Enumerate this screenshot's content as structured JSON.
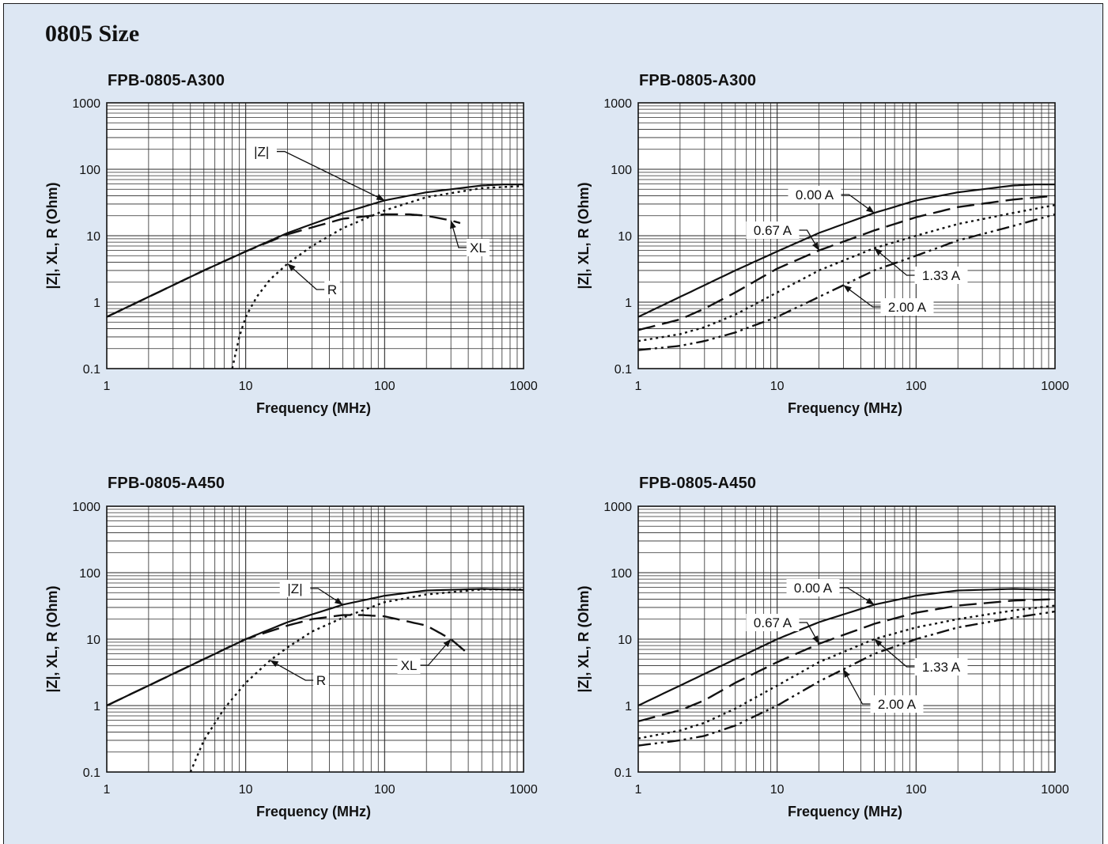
{
  "page_title": "0805 Size",
  "chart_data": [
    {
      "type": "line",
      "title": "FPB-0805-A300",
      "xlabel": "Frequency (MHz)",
      "ylabel": "|Z|, XL, R (Ohm)",
      "x_scale": "log",
      "y_scale": "log",
      "xlim": [
        1,
        1000
      ],
      "ylim": [
        0.1,
        1000
      ],
      "x_ticks": [
        "1",
        "10",
        "100",
        "1000"
      ],
      "y_ticks": [
        "0.1",
        "1",
        "10",
        "100",
        "1000"
      ],
      "grid": true,
      "series": [
        {
          "name": "|Z|",
          "style": "solid",
          "x": [
            1,
            2,
            5,
            10,
            20,
            50,
            100,
            200,
            500,
            700,
            1000
          ],
          "y": [
            0.6,
            1.2,
            3.0,
            5.8,
            11,
            22,
            34,
            45,
            57,
            59,
            59
          ]
        },
        {
          "name": "XL",
          "style": "dashed",
          "x": [
            1,
            2,
            5,
            10,
            20,
            50,
            100,
            150,
            200,
            300,
            350
          ],
          "y": [
            0.6,
            1.2,
            3.0,
            5.8,
            10.5,
            18,
            21,
            21,
            20,
            17,
            15.5
          ]
        },
        {
          "name": "R",
          "style": "dotted",
          "x": [
            8,
            9,
            10,
            12,
            15,
            20,
            30,
            50,
            100,
            200,
            500,
            1000
          ],
          "y": [
            0.1,
            0.3,
            0.6,
            1.2,
            2.2,
            3.8,
            7,
            13,
            24,
            38,
            52,
            56
          ]
        }
      ],
      "annotations": [
        "|Z|",
        "XL",
        "R"
      ]
    },
    {
      "type": "line",
      "title": "FPB-0805-A300",
      "xlabel": "Frequency (MHz)",
      "ylabel": "|Z|, XL, R (Ohm)",
      "x_scale": "log",
      "y_scale": "log",
      "xlim": [
        1,
        1000
      ],
      "ylim": [
        0.1,
        1000
      ],
      "x_ticks": [
        "1",
        "10",
        "100",
        "1000"
      ],
      "y_ticks": [
        "0.1",
        "1",
        "10",
        "100",
        "1000"
      ],
      "grid": true,
      "series": [
        {
          "name": "0.00 A",
          "style": "solid",
          "x": [
            1,
            2,
            5,
            10,
            20,
            50,
            100,
            200,
            500,
            700,
            1000
          ],
          "y": [
            0.6,
            1.2,
            3.0,
            5.8,
            11,
            22,
            34,
            45,
            57,
            59,
            59
          ]
        },
        {
          "name": "0.67 A",
          "style": "dashed",
          "x": [
            1,
            2,
            3,
            5,
            10,
            20,
            50,
            100,
            200,
            500,
            1000
          ],
          "y": [
            0.38,
            0.55,
            0.8,
            1.4,
            3.2,
            6,
            12,
            19,
            27,
            35,
            40
          ]
        },
        {
          "name": "1.33 A",
          "style": "dotted",
          "x": [
            1,
            2,
            3,
            5,
            10,
            20,
            50,
            100,
            200,
            500,
            1000
          ],
          "y": [
            0.26,
            0.33,
            0.42,
            0.65,
            1.4,
            3,
            6.5,
            10,
            15,
            22,
            29
          ]
        },
        {
          "name": "2.00 A",
          "style": "dashdot",
          "x": [
            1,
            2,
            3,
            5,
            10,
            20,
            50,
            100,
            200,
            500,
            1000
          ],
          "y": [
            0.19,
            0.22,
            0.26,
            0.35,
            0.6,
            1.2,
            3,
            5,
            8.5,
            14,
            21
          ]
        }
      ],
      "annotations": [
        "0.00 A",
        "0.67 A",
        "1.33 A",
        "2.00 A"
      ]
    },
    {
      "type": "line",
      "title": "FPB-0805-A450",
      "xlabel": "Frequency (MHz)",
      "ylabel": "|Z|, XL, R (Ohm)",
      "x_scale": "log",
      "y_scale": "log",
      "xlim": [
        1,
        1000
      ],
      "ylim": [
        0.1,
        1000
      ],
      "x_ticks": [
        "1",
        "10",
        "100",
        "1000"
      ],
      "y_ticks": [
        "0.1",
        "1",
        "10",
        "100",
        "1000"
      ],
      "grid": true,
      "series": [
        {
          "name": "|Z|",
          "style": "solid",
          "x": [
            1,
            2,
            5,
            10,
            20,
            50,
            100,
            200,
            500,
            1000
          ],
          "y": [
            1.0,
            2.0,
            5.0,
            10,
            18,
            33,
            45,
            54,
            57,
            55
          ]
        },
        {
          "name": "XL",
          "style": "dashed",
          "x": [
            1,
            2,
            5,
            10,
            20,
            30,
            50,
            70,
            100,
            200,
            300,
            400
          ],
          "y": [
            1.0,
            2.0,
            5.0,
            10,
            16,
            20,
            23,
            23,
            22,
            16,
            10,
            6
          ]
        },
        {
          "name": "R",
          "style": "dotted",
          "x": [
            4,
            5,
            7,
            10,
            15,
            20,
            30,
            50,
            100,
            200,
            500,
            1000
          ],
          "y": [
            0.1,
            0.3,
            0.9,
            2.2,
            4.8,
            7.5,
            13,
            21,
            36,
            47,
            56,
            56
          ]
        }
      ],
      "annotations": [
        "|Z|",
        "XL",
        "R"
      ]
    },
    {
      "type": "line",
      "title": "FPB-0805-A450",
      "xlabel": "Frequency (MHz)",
      "ylabel": "|Z|, XL, R (Ohm)",
      "x_scale": "log",
      "y_scale": "log",
      "xlim": [
        1,
        1000
      ],
      "ylim": [
        0.1,
        1000
      ],
      "x_ticks": [
        "1",
        "10",
        "100",
        "1000"
      ],
      "y_ticks": [
        "0.1",
        "1",
        "10",
        "100",
        "1000"
      ],
      "grid": true,
      "series": [
        {
          "name": "0.00 A",
          "style": "solid",
          "x": [
            1,
            2,
            5,
            10,
            20,
            50,
            100,
            200,
            500,
            1000
          ],
          "y": [
            1.0,
            2.0,
            5.0,
            10,
            18,
            33,
            45,
            54,
            57,
            55
          ]
        },
        {
          "name": "0.67 A",
          "style": "dashed",
          "x": [
            1,
            2,
            3,
            5,
            10,
            20,
            50,
            100,
            200,
            500,
            1000
          ],
          "y": [
            0.58,
            0.85,
            1.2,
            2.2,
            4.5,
            8.5,
            17,
            25,
            32,
            38,
            40
          ]
        },
        {
          "name": "1.33 A",
          "style": "dotted",
          "x": [
            1,
            2,
            3,
            5,
            10,
            20,
            50,
            100,
            200,
            500,
            1000
          ],
          "y": [
            0.32,
            0.42,
            0.55,
            0.9,
            2,
            4.5,
            10,
            15,
            20,
            27,
            32
          ]
        },
        {
          "name": "2.00 A",
          "style": "dashdot",
          "x": [
            1,
            2,
            3,
            5,
            10,
            20,
            50,
            100,
            200,
            500,
            1000
          ],
          "y": [
            0.25,
            0.3,
            0.35,
            0.5,
            1,
            2.3,
            6,
            10,
            15,
            21,
            26
          ]
        }
      ],
      "annotations": [
        "0.00 A",
        "0.67 A",
        "1.33 A",
        "2.00 A"
      ]
    }
  ]
}
